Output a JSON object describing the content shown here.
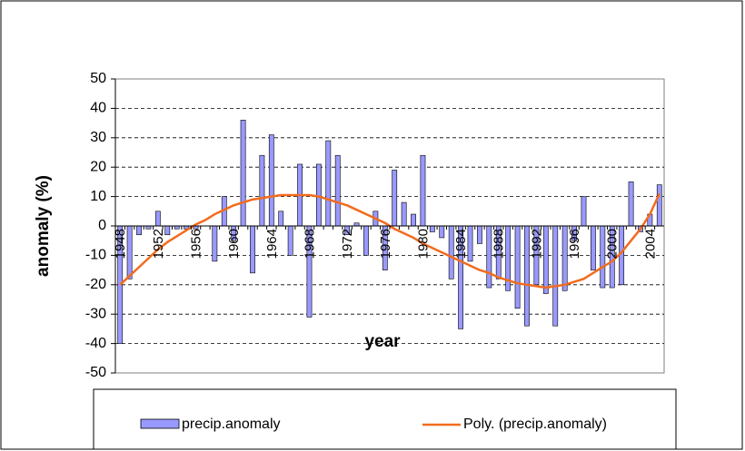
{
  "chart_data": {
    "type": "bar",
    "y_label": "anomaly (%)",
    "x_label": "year",
    "categories": [
      "1948",
      null,
      null,
      null,
      "1952",
      null,
      null,
      null,
      "1956",
      null,
      null,
      null,
      "1960",
      null,
      null,
      null,
      "1964",
      null,
      null,
      null,
      "1968",
      null,
      null,
      null,
      "1972",
      null,
      null,
      null,
      "1976",
      null,
      null,
      null,
      "1980",
      null,
      null,
      null,
      "1984",
      null,
      null,
      null,
      "1988",
      null,
      null,
      null,
      "1992",
      null,
      null,
      null,
      "1996",
      null,
      null,
      null,
      "2000",
      null,
      null,
      null,
      "2004",
      null
    ],
    "series": [
      {
        "name": "precip.anomaly",
        "color": "#9999ff",
        "type": "bar",
        "values": [
          -40,
          -18,
          -3,
          -1,
          5,
          -3,
          -1,
          -1,
          -1,
          0,
          -12,
          10,
          -5,
          36,
          -16,
          24,
          31,
          5,
          -10,
          21,
          -31,
          21,
          29,
          24,
          -3,
          1,
          -10,
          5,
          -15,
          19,
          8,
          4,
          24,
          -2,
          -4,
          -18,
          -35,
          -12,
          -6,
          -21,
          -18,
          -22,
          -28,
          -34,
          -20,
          -23,
          -34,
          -22,
          -5,
          10,
          -15,
          -21,
          -21,
          -20,
          15,
          -2,
          4,
          14
        ]
      },
      {
        "name": "Poly. (precip.anomaly)",
        "color": "#f26b1d",
        "type": "line",
        "values": [
          -20,
          -17,
          -14,
          -11,
          -8,
          -5.5,
          -3.5,
          -1.5,
          0.5,
          2,
          4,
          5.5,
          7,
          8,
          9,
          9.5,
          10,
          10.5,
          10.5,
          10.5,
          10.5,
          10,
          9,
          8,
          7,
          5.5,
          4,
          2.5,
          1,
          -1,
          -2.5,
          -4,
          -6,
          -7.5,
          -9,
          -10.5,
          -12,
          -13.5,
          -15,
          -16,
          -17.5,
          -18.5,
          -19.5,
          -20,
          -20.5,
          -21,
          -20.5,
          -20,
          -19,
          -18,
          -16,
          -14,
          -12,
          -9,
          -5,
          -1,
          4,
          11
        ]
      }
    ],
    "ylim": [
      -50,
      50
    ],
    "yticks": [
      -50,
      -40,
      -30,
      -20,
      -10,
      0,
      10,
      20,
      30,
      40,
      50
    ],
    "grid": true
  }
}
